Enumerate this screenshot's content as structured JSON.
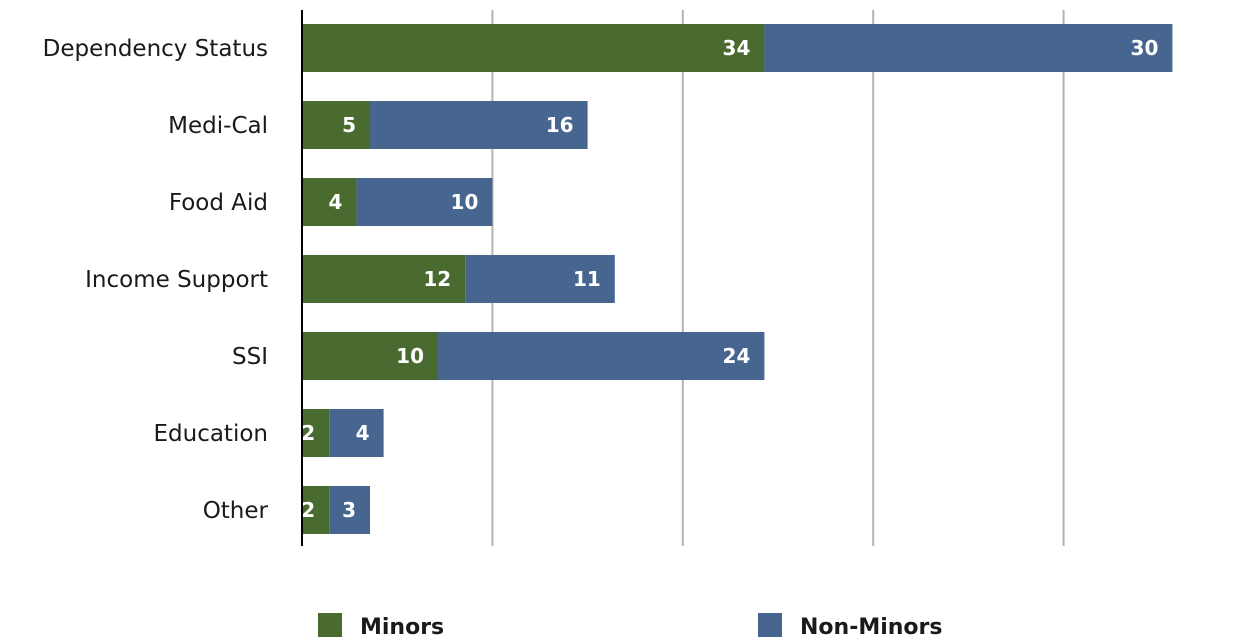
{
  "chart_data": {
    "type": "bar",
    "orientation": "horizontal",
    "stacked": true,
    "categories": [
      "Dependency Status",
      "Medi-Cal",
      "Food Aid",
      "Income Support",
      "SSI",
      "Education",
      "Other"
    ],
    "series": [
      {
        "name": "Minors",
        "values": [
          34,
          5,
          4,
          12,
          10,
          2,
          2
        ],
        "color": "#4a6b2f"
      },
      {
        "name": "Non-Minors",
        "values": [
          30,
          16,
          10,
          11,
          24,
          4,
          3
        ],
        "color": "#466690"
      }
    ],
    "xlim": [
      0,
      70
    ],
    "x_gridlines": [
      0,
      14,
      28,
      42,
      56
    ],
    "x_tick_labels_shown": false,
    "grid": true,
    "legend": "bottom"
  }
}
